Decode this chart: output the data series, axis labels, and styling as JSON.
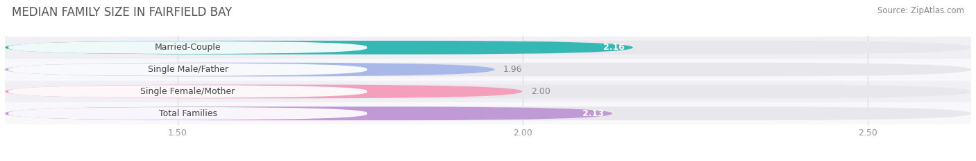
{
  "title": "MEDIAN FAMILY SIZE IN FAIRFIELD BAY",
  "source": "Source: ZipAtlas.com",
  "categories": [
    "Married-Couple",
    "Single Male/Father",
    "Single Female/Mother",
    "Total Families"
  ],
  "values": [
    2.16,
    1.96,
    2.0,
    2.13
  ],
  "bar_colors": [
    "#35b8b4",
    "#a8b8e8",
    "#f4a0bc",
    "#c09ad4"
  ],
  "bar_bg_color": "#e8e8ec",
  "xlim_data": [
    1.25,
    2.65
  ],
  "x_axis_min": 1.25,
  "xticks": [
    1.5,
    2.0,
    2.5
  ],
  "xtick_labels": [
    "1.50",
    "2.00",
    "2.50"
  ],
  "label_fontsize": 9.0,
  "value_fontsize": 9.0,
  "title_fontsize": 12,
  "source_fontsize": 8.5,
  "bar_height": 0.62,
  "bg_color": "#f7f7f7",
  "white_bg": "#ffffff",
  "grid_color": "#d8d8d8",
  "title_color": "#555555",
  "source_color": "#888888",
  "tick_color": "#999999",
  "label_text_color": "#444444",
  "value_inside_color": "#ffffff",
  "value_outside_color": "#888888",
  "value_inside_threshold": 2.1
}
